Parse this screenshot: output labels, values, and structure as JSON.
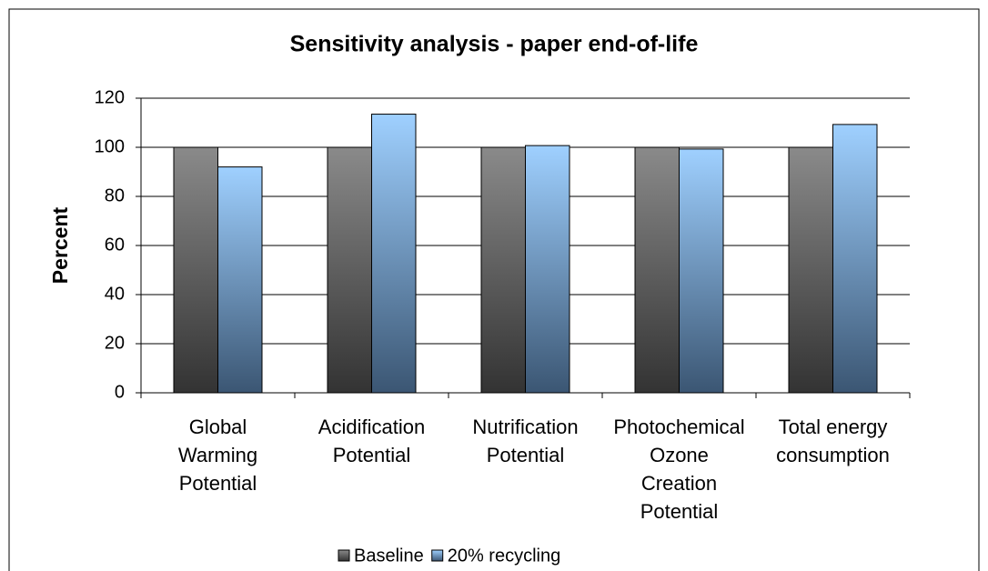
{
  "chart_data": {
    "type": "bar",
    "title": "Sensitivity analysis - paper end-of-life",
    "ylabel": "Percent",
    "categories": [
      "Global Warming Potential",
      "Acidification Potential",
      "Nutrification Potential",
      "Photochemical Ozone Creation Potential",
      "Total energy consumption"
    ],
    "series": [
      {
        "name": "Baseline",
        "color": "#808080",
        "values": [
          100,
          100,
          100,
          100,
          100
        ]
      },
      {
        "name": "20% recycling",
        "color": "#99ccff",
        "values": [
          92,
          113.5,
          100.7,
          99.3,
          109.3
        ]
      }
    ],
    "ylim": [
      0,
      120
    ],
    "yticks": [
      0,
      20,
      40,
      60,
      80,
      100,
      120
    ],
    "grid": true,
    "legend": "bottom"
  }
}
